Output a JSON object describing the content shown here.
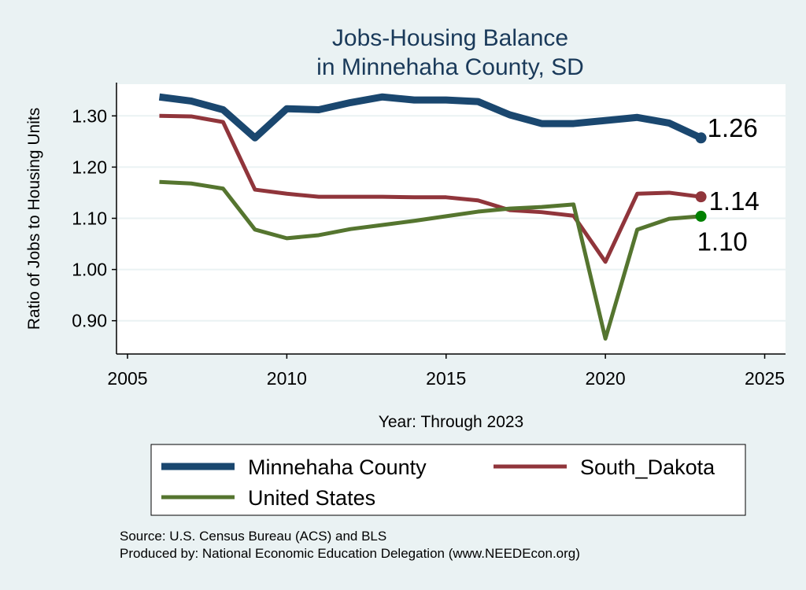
{
  "chart_data": {
    "type": "line",
    "title": [
      "Jobs-Housing Balance",
      "in Minnehaha County, SD"
    ],
    "xlabel": "Year: Through 2023",
    "ylabel": "Ratio of Jobs to Housing Units",
    "xlim": [
      2005,
      2026
    ],
    "ylim": [
      0.835,
      1.365
    ],
    "xticks": [
      2005,
      2010,
      2015,
      2020,
      2025
    ],
    "xtick_labels": [
      "2005",
      "2010",
      "2015",
      "2020",
      "2025"
    ],
    "yticks": [
      0.9,
      1.0,
      1.1,
      1.2,
      1.3
    ],
    "ytick_labels": [
      "0.90",
      "1.00",
      "1.10",
      "1.20",
      "1.30"
    ],
    "grid": true,
    "legend_placement": "bottom",
    "x": [
      2006,
      2007,
      2008,
      2009,
      2010,
      2011,
      2012,
      2013,
      2014,
      2015,
      2016,
      2017,
      2018,
      2019,
      2020,
      2021,
      2022,
      2023
    ],
    "series": [
      {
        "name": "Minnehaha County",
        "color": "#1a476f",
        "width": 9,
        "marker_color": "#1a476f",
        "end_label": "1.26",
        "values": [
          1.337,
          1.329,
          1.312,
          1.257,
          1.314,
          1.312,
          1.326,
          1.337,
          1.331,
          1.331,
          1.328,
          1.302,
          1.285,
          1.285,
          1.291,
          1.297,
          1.286,
          1.257
        ]
      },
      {
        "name": "South_Dakota",
        "color": "#90353b",
        "width": 5,
        "marker_color": "#90353b",
        "end_label": "1.14",
        "values": [
          1.3,
          1.299,
          1.288,
          1.156,
          1.148,
          1.142,
          1.142,
          1.142,
          1.141,
          1.141,
          1.135,
          1.116,
          1.112,
          1.105,
          1.015,
          1.148,
          1.15,
          1.142
        ]
      },
      {
        "name": "United States",
        "color": "#55752f",
        "width": 5,
        "marker_color": "#008000",
        "end_label": "1.10",
        "values": [
          1.171,
          1.168,
          1.158,
          1.078,
          1.061,
          1.067,
          1.079,
          1.087,
          1.095,
          1.104,
          1.113,
          1.119,
          1.122,
          1.127,
          0.865,
          1.078,
          1.099,
          1.104
        ]
      }
    ]
  },
  "notes": {
    "source": "Source: U.S. Census Bureau (ACS) and BLS",
    "producer": "Produced by: National Economic Education Delegation (www.NEEDEcon.org)"
  }
}
